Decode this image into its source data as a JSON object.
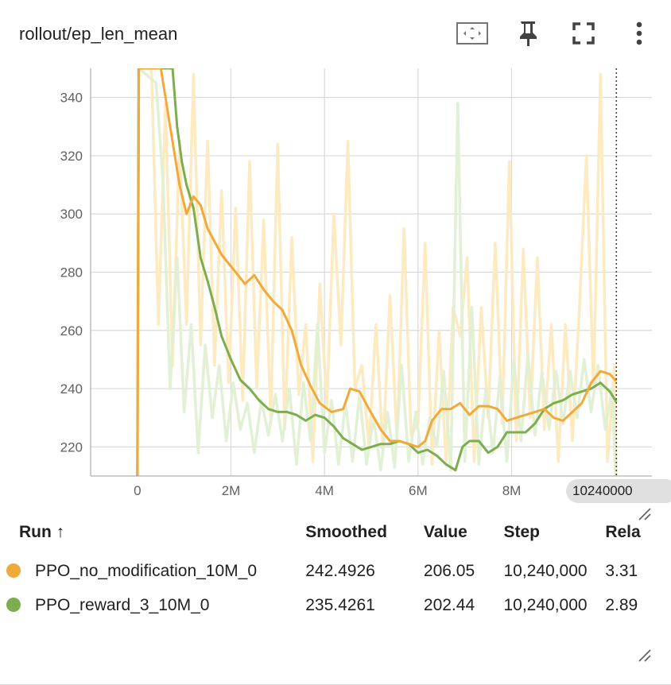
{
  "card": {
    "title": "rollout/ep_len_mean"
  },
  "toolbar": {
    "icons": [
      "fit-domain-icon",
      "pin-icon",
      "fullscreen-icon",
      "more-vert-icon"
    ]
  },
  "hover": {
    "step_label": "10240000",
    "step": 10240000
  },
  "legend": {
    "headers": {
      "run": "Run ↑",
      "smoothed": "Smoothed",
      "value": "Value",
      "step": "Step",
      "relative": "Rela"
    },
    "rows": [
      {
        "color": "#f2a93b",
        "run": "PPO_no_modification_10M_0",
        "smoothed": "242.4926",
        "value": "206.05",
        "step": "10,240,000",
        "relative": "3.31"
      },
      {
        "color": "#7cad4e",
        "run": "PPO_reward_3_10M_0",
        "smoothed": "235.4261",
        "value": "202.44",
        "step": "10,240,000",
        "relative": "2.89"
      }
    ]
  },
  "chart_data": {
    "type": "line",
    "title": "rollout/ep_len_mean",
    "xlabel": "",
    "ylabel": "",
    "xlim": [
      -1000000,
      11000000
    ],
    "ylim": [
      210,
      350
    ],
    "x_ticks": [
      0,
      2000000,
      4000000,
      6000000,
      8000000
    ],
    "x_tick_labels": [
      "0",
      "2M",
      "4M",
      "6M",
      "8M"
    ],
    "y_ticks": [
      220,
      240,
      260,
      280,
      300,
      320,
      340
    ],
    "y_tick_labels": [
      "220",
      "240",
      "260",
      "280",
      "300",
      "320",
      "340"
    ],
    "grid": true,
    "series": [
      {
        "name": "PPO_no_modification_10M_0",
        "color": "#f2a93b",
        "raw_color": "#fde9bd",
        "smoothed": [
          [
            0,
            210
          ],
          [
            30000,
            350
          ],
          [
            500000,
            350
          ],
          [
            700000,
            330
          ],
          [
            900000,
            310
          ],
          [
            1050000,
            300
          ],
          [
            1200000,
            306
          ],
          [
            1350000,
            303
          ],
          [
            1500000,
            295
          ],
          [
            1800000,
            286
          ],
          [
            2100000,
            280
          ],
          [
            2300000,
            276
          ],
          [
            2500000,
            279
          ],
          [
            2700000,
            274
          ],
          [
            2900000,
            270
          ],
          [
            3100000,
            267
          ],
          [
            3300000,
            260
          ],
          [
            3500000,
            248
          ],
          [
            3700000,
            241
          ],
          [
            3900000,
            235
          ],
          [
            4150000,
            232
          ],
          [
            4400000,
            233
          ],
          [
            4550000,
            240
          ],
          [
            4750000,
            239
          ],
          [
            4950000,
            233
          ],
          [
            5200000,
            226
          ],
          [
            5400000,
            222
          ],
          [
            5600000,
            222
          ],
          [
            5800000,
            221
          ],
          [
            6000000,
            220
          ],
          [
            6150000,
            222
          ],
          [
            6300000,
            229
          ],
          [
            6500000,
            233
          ],
          [
            6700000,
            233
          ],
          [
            6900000,
            235
          ],
          [
            7100000,
            231
          ],
          [
            7300000,
            234
          ],
          [
            7500000,
            234
          ],
          [
            7700000,
            233
          ],
          [
            7900000,
            229
          ],
          [
            8100000,
            230
          ],
          [
            8300000,
            231
          ],
          [
            8500000,
            232
          ],
          [
            8700000,
            233
          ],
          [
            8900000,
            230
          ],
          [
            9100000,
            229
          ],
          [
            9300000,
            232
          ],
          [
            9500000,
            235
          ],
          [
            9700000,
            242
          ],
          [
            9900000,
            246
          ],
          [
            10100000,
            245
          ],
          [
            10240000,
            242.49
          ]
        ],
        "raw": [
          [
            0,
            210
          ],
          [
            30000,
            350
          ],
          [
            300000,
            350
          ],
          [
            450000,
            262
          ],
          [
            600000,
            338
          ],
          [
            750000,
            248
          ],
          [
            900000,
            325
          ],
          [
            1050000,
            262
          ],
          [
            1200000,
            348
          ],
          [
            1350000,
            255
          ],
          [
            1500000,
            325
          ],
          [
            1650000,
            248
          ],
          [
            1800000,
            308
          ],
          [
            1950000,
            242
          ],
          [
            2100000,
            302
          ],
          [
            2250000,
            236
          ],
          [
            2400000,
            318
          ],
          [
            2550000,
            240
          ],
          [
            2700000,
            298
          ],
          [
            2850000,
            230
          ],
          [
            3000000,
            324
          ],
          [
            3150000,
            226
          ],
          [
            3300000,
            292
          ],
          [
            3450000,
            238
          ],
          [
            3600000,
            262
          ],
          [
            3750000,
            215
          ],
          [
            3900000,
            276
          ],
          [
            4050000,
            234
          ],
          [
            4200000,
            300
          ],
          [
            4350000,
            255
          ],
          [
            4500000,
            325
          ],
          [
            4650000,
            240
          ],
          [
            4800000,
            248
          ],
          [
            4950000,
            220
          ],
          [
            5100000,
            262
          ],
          [
            5250000,
            218
          ],
          [
            5400000,
            272
          ],
          [
            5550000,
            222
          ],
          [
            5700000,
            295
          ],
          [
            5850000,
            224
          ],
          [
            6000000,
            228
          ],
          [
            6150000,
            290
          ],
          [
            6300000,
            214
          ],
          [
            6450000,
            260
          ],
          [
            6600000,
            215
          ],
          [
            6750000,
            268
          ],
          [
            6900000,
            258
          ],
          [
            7050000,
            285
          ],
          [
            7200000,
            215
          ],
          [
            7350000,
            268
          ],
          [
            7500000,
            230
          ],
          [
            7650000,
            290
          ],
          [
            7800000,
            228
          ],
          [
            7950000,
            318
          ],
          [
            8100000,
            222
          ],
          [
            8250000,
            288
          ],
          [
            8400000,
            230
          ],
          [
            8550000,
            285
          ],
          [
            8700000,
            226
          ],
          [
            8850000,
            262
          ],
          [
            9000000,
            215
          ],
          [
            9150000,
            262
          ],
          [
            9300000,
            222
          ],
          [
            9450000,
            268
          ],
          [
            9600000,
            320
          ],
          [
            9750000,
            240
          ],
          [
            9900000,
            348
          ],
          [
            10050000,
            215
          ],
          [
            10200000,
            248
          ],
          [
            10240000,
            206.05
          ]
        ]
      },
      {
        "name": "PPO_reward_3_10M_0",
        "color": "#7cad4e",
        "raw_color": "#e0efd4",
        "smoothed": [
          [
            0,
            210
          ],
          [
            30000,
            350
          ],
          [
            750000,
            350
          ],
          [
            850000,
            330
          ],
          [
            950000,
            318
          ],
          [
            1050000,
            310
          ],
          [
            1200000,
            302
          ],
          [
            1350000,
            285
          ],
          [
            1500000,
            277
          ],
          [
            1650000,
            268
          ],
          [
            1800000,
            258
          ],
          [
            2000000,
            250
          ],
          [
            2200000,
            243
          ],
          [
            2400000,
            240
          ],
          [
            2600000,
            236
          ],
          [
            2800000,
            233
          ],
          [
            3000000,
            232
          ],
          [
            3200000,
            232
          ],
          [
            3400000,
            231
          ],
          [
            3600000,
            229
          ],
          [
            3800000,
            231
          ],
          [
            4000000,
            230
          ],
          [
            4200000,
            227
          ],
          [
            4400000,
            223
          ],
          [
            4600000,
            221
          ],
          [
            4800000,
            219
          ],
          [
            5000000,
            220
          ],
          [
            5200000,
            221
          ],
          [
            5400000,
            221
          ],
          [
            5600000,
            222
          ],
          [
            5800000,
            221
          ],
          [
            6000000,
            218
          ],
          [
            6200000,
            219
          ],
          [
            6400000,
            217
          ],
          [
            6600000,
            214
          ],
          [
            6800000,
            212
          ],
          [
            6950000,
            220
          ],
          [
            7100000,
            222
          ],
          [
            7300000,
            222
          ],
          [
            7500000,
            218
          ],
          [
            7700000,
            220
          ],
          [
            7900000,
            225
          ],
          [
            8100000,
            225
          ],
          [
            8300000,
            225
          ],
          [
            8500000,
            228
          ],
          [
            8700000,
            233
          ],
          [
            8900000,
            235
          ],
          [
            9100000,
            236
          ],
          [
            9300000,
            238
          ],
          [
            9500000,
            239
          ],
          [
            9700000,
            240
          ],
          [
            9900000,
            242
          ],
          [
            10100000,
            239
          ],
          [
            10240000,
            235.43
          ]
        ],
        "raw": [
          [
            0,
            210
          ],
          [
            30000,
            350
          ],
          [
            400000,
            345
          ],
          [
            550000,
            310
          ],
          [
            700000,
            240
          ],
          [
            850000,
            285
          ],
          [
            1000000,
            232
          ],
          [
            1150000,
            262
          ],
          [
            1300000,
            218
          ],
          [
            1450000,
            255
          ],
          [
            1600000,
            230
          ],
          [
            1750000,
            248
          ],
          [
            1900000,
            222
          ],
          [
            2050000,
            242
          ],
          [
            2200000,
            226
          ],
          [
            2350000,
            235
          ],
          [
            2500000,
            218
          ],
          [
            2650000,
            236
          ],
          [
            2800000,
            224
          ],
          [
            2950000,
            238
          ],
          [
            3100000,
            222
          ],
          [
            3250000,
            240
          ],
          [
            3400000,
            214
          ],
          [
            3550000,
            242
          ],
          [
            3700000,
            222
          ],
          [
            3850000,
            262
          ],
          [
            4000000,
            218
          ],
          [
            4150000,
            236
          ],
          [
            4300000,
            214
          ],
          [
            4450000,
            235
          ],
          [
            4600000,
            215
          ],
          [
            4750000,
            238
          ],
          [
            4900000,
            214
          ],
          [
            5050000,
            230
          ],
          [
            5200000,
            212
          ],
          [
            5350000,
            232
          ],
          [
            5500000,
            213
          ],
          [
            5650000,
            248
          ],
          [
            5800000,
            215
          ],
          [
            5950000,
            232
          ],
          [
            6100000,
            214
          ],
          [
            6250000,
            230
          ],
          [
            6400000,
            220
          ],
          [
            6550000,
            246
          ],
          [
            6700000,
            212
          ],
          [
            6850000,
            338
          ],
          [
            7000000,
            215
          ],
          [
            7150000,
            268
          ],
          [
            7300000,
            214
          ],
          [
            7450000,
            240
          ],
          [
            7600000,
            218
          ],
          [
            7750000,
            244
          ],
          [
            7900000,
            215
          ],
          [
            8050000,
            250
          ],
          [
            8200000,
            222
          ],
          [
            8350000,
            252
          ],
          [
            8500000,
            224
          ],
          [
            8650000,
            246
          ],
          [
            8800000,
            226
          ],
          [
            8950000,
            246
          ],
          [
            9100000,
            228
          ],
          [
            9250000,
            246
          ],
          [
            9400000,
            230
          ],
          [
            9550000,
            250
          ],
          [
            9700000,
            232
          ],
          [
            9850000,
            248
          ],
          [
            10000000,
            226
          ],
          [
            10150000,
            240
          ],
          [
            10240000,
            202.44
          ]
        ]
      }
    ]
  }
}
